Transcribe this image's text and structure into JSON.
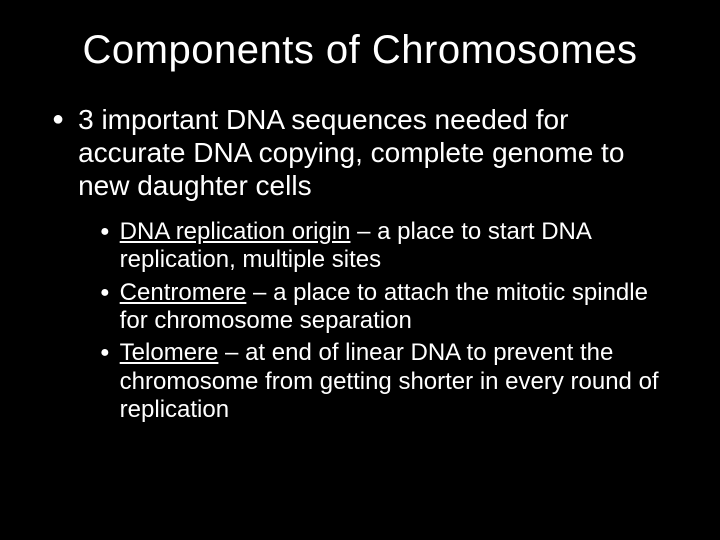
{
  "slide": {
    "background_color": "#000000",
    "text_color": "#ffffff",
    "title_fontsize": 40,
    "level1_fontsize": 28,
    "level2_fontsize": 24,
    "title": "Components of Chromosomes",
    "level1_text": "3 important DNA sequences needed for accurate DNA copying, complete genome to new daughter cells",
    "level1_bullet": "●",
    "level2_bullet": "●",
    "items": [
      {
        "term": "DNA replication origin",
        "definition": " – a place to start DNA replication, multiple sites"
      },
      {
        "term": "Centromere",
        "definition": " – a place to attach the mitotic spindle for chromosome separation"
      },
      {
        "term": "Telomere",
        "definition": " – at end of linear DNA to prevent the chromosome from getting shorter in every round of replication"
      }
    ]
  }
}
